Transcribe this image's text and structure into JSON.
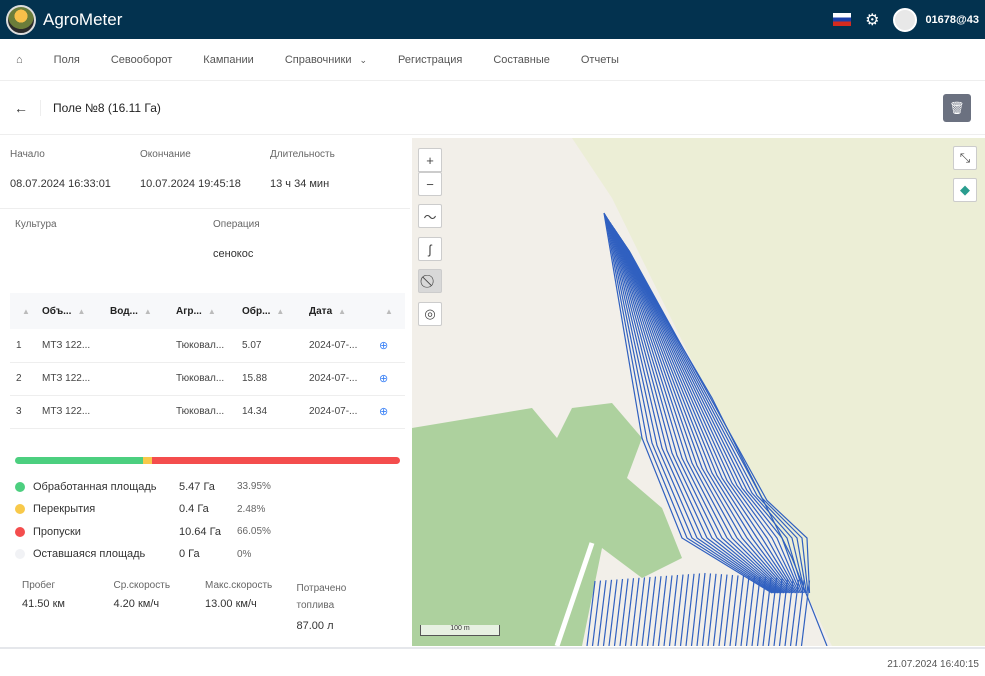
{
  "app": {
    "title": "AgroMeter",
    "user": "01678@43",
    "lang_flag": "ru"
  },
  "nav": {
    "items": [
      "Поля",
      "Севооборот",
      "Кампании",
      "Справочники",
      "Регистрация",
      "Составные",
      "Отчеты"
    ]
  },
  "page": {
    "title": "Поле №8 (16.11 Га)"
  },
  "summary": {
    "start_label": "Начало",
    "start": "08.07.2024 16:33:01",
    "end_label": "Окончание",
    "end": "10.07.2024 19:45:18",
    "duration_label": "Длительность",
    "duration": "13 ч 34 мин",
    "crop_label": "Культура",
    "crop": "",
    "operation_label": "Операция",
    "operation": "сенокос"
  },
  "table": {
    "headers": [
      "Объ...",
      "Вод...",
      "Агр...",
      "Обр...",
      "Дата"
    ],
    "rows": [
      [
        "1",
        "МТЗ 122...",
        "",
        "Тюковал...",
        "5.07",
        "2024-07-..."
      ],
      [
        "2",
        "МТЗ 122...",
        "",
        "Тюковал...",
        "15.88",
        "2024-07-..."
      ],
      [
        "3",
        "МТЗ 122...",
        "",
        "Тюковал...",
        "14.34",
        "2024-07-..."
      ]
    ]
  },
  "area": {
    "items": [
      {
        "label": "Обработанная площадь",
        "area": "5.47 Га",
        "pct": "33.95%",
        "share": 33.95,
        "color": "#4ccf7f"
      },
      {
        "label": "Перекрытия",
        "area": "0.4 Га",
        "pct": "2.48%",
        "share": 2.48,
        "color": "#f8c94a"
      },
      {
        "label": "Пропуски",
        "area": "10.64 Га",
        "pct": "66.05%",
        "share": 66.05,
        "color": "#f44d4d"
      },
      {
        "label": "Оставшаяся площадь",
        "area": "0 Га",
        "pct": "0%",
        "share": 0,
        "color": "#f1f2f5"
      }
    ]
  },
  "stats": [
    {
      "label": "Пробег",
      "value": "41.50 км"
    },
    {
      "label": "Ср.скорость",
      "value": "4.20 км/ч"
    },
    {
      "label": "Макс.скорость",
      "value": "13.00 км/ч"
    },
    {
      "label": "Потрачено топлива",
      "value": "87.00 л"
    }
  ],
  "map": {
    "scale": "100 m",
    "track_color": "#3060c0"
  },
  "footer": {
    "timestamp": "21.07.2024 16:40:15"
  }
}
